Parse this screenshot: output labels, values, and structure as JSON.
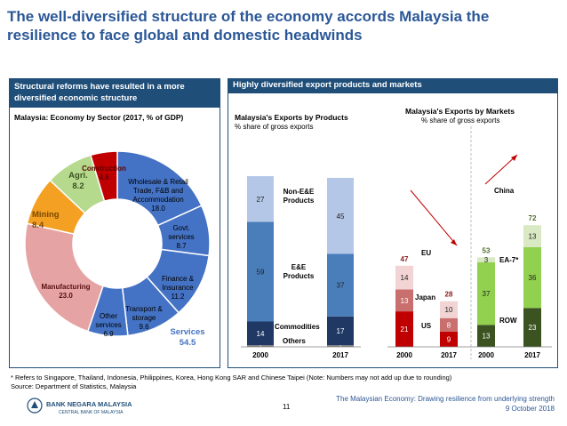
{
  "title": "The well-diversified structure of the economy accords Malaysia the resilience to face global and domestic headwinds",
  "left_panel": {
    "header": "Structural reforms have resulted in a more diversified economic structure",
    "chart_title": "Malaysia: Economy by Sector  (2017, % of GDP)"
  },
  "right_panel": {
    "header": "Highly diversified export products and markets"
  },
  "chart_data": [
    {
      "type": "pie",
      "title": "Malaysia: Economy by Sector  (2017, % of GDP)",
      "slices": [
        {
          "label": "Wholesale & Retail Trade, F&B and Accommodation",
          "value": 18.0,
          "display": "18.0",
          "color": "#4472c4"
        },
        {
          "label": "Govt. services",
          "value": 8.7,
          "display": "8.7",
          "color": "#4472c4"
        },
        {
          "label": "Finance & Insurance",
          "value": 11.2,
          "display": "11.2",
          "color": "#4472c4"
        },
        {
          "label": "Transport & storage",
          "value": 9.6,
          "display": "9.6",
          "color": "#4472c4"
        },
        {
          "label": "Other services",
          "value": 6.9,
          "display": "6.9",
          "color": "#4472c4"
        },
        {
          "label": "Manufacturing",
          "value": 23.0,
          "display": "23.0",
          "color": "#e6a3a3"
        },
        {
          "label": "Mining",
          "value": 8.4,
          "display": "8.4",
          "color": "#f4a023"
        },
        {
          "label": "Agri.",
          "value": 8.2,
          "display": "8.2",
          "color": "#b5d98d"
        },
        {
          "label": "Construction",
          "value": 4.6,
          "display": "4.6",
          "color": "#c00000"
        }
      ],
      "group_label": {
        "name": "Services",
        "value": "54.5"
      }
    },
    {
      "type": "bar",
      "title": "Malaysia's Exports by Products",
      "subtitle": "% share of gross exports",
      "categories": [
        "2000",
        "2017"
      ],
      "series": [
        {
          "name": "Others",
          "values": [
            1,
            1
          ],
          "color": "#7f7f7f"
        },
        {
          "name": "Commodities",
          "values": [
            14,
            17
          ],
          "color": "#1f3864"
        },
        {
          "name": "E&E Products",
          "values": [
            59,
            37
          ],
          "color": "#4a7ebb"
        },
        {
          "name": "Non-E&E Products",
          "values": [
            27,
            45
          ],
          "color": "#b4c7e7"
        }
      ]
    },
    {
      "type": "bar",
      "title": "Malaysia's Exports by Markets",
      "subtitle": "% share of gross exports",
      "groups": [
        {
          "categories": [
            "2000",
            "2017"
          ],
          "totals": [
            47,
            28
          ],
          "series": [
            {
              "name": "US",
              "values": [
                21,
                9
              ],
              "color": "#c00000"
            },
            {
              "name": "Japan",
              "values": [
                13,
                8
              ],
              "color": "#c9706e"
            },
            {
              "name": "EU",
              "values": [
                14,
                10
              ],
              "color": "#f2d4d4"
            }
          ]
        },
        {
          "categories": [
            "2000",
            "2017"
          ],
          "totals": [
            53,
            72
          ],
          "series": [
            {
              "name": "ROW",
              "values": [
                13,
                23
              ],
              "color": "#3b5320"
            },
            {
              "name": "EA-7*",
              "values": [
                37,
                36
              ],
              "color": "#92d050"
            },
            {
              "name": "China",
              "values": [
                3,
                13
              ],
              "color": "#d8e9c3"
            }
          ]
        }
      ]
    }
  ],
  "footnote_1": "* Refers to Singapore, Thailand, Indonesia, Philippines, Korea, Hong Kong SAR and Chinese Taipei (Note: Numbers may not add up due to rounding)",
  "footnote_2": "Source: Department of Statistics, Malaysia",
  "footer": {
    "page": "11",
    "line1": "The Malaysian Economy: Drawing resilience from underlying strength",
    "line2": "9 October 2018",
    "bank_name": "BANK NEGARA MALAYSIA",
    "bank_sub": "CENTRAL BANK OF MALAYSIA"
  }
}
